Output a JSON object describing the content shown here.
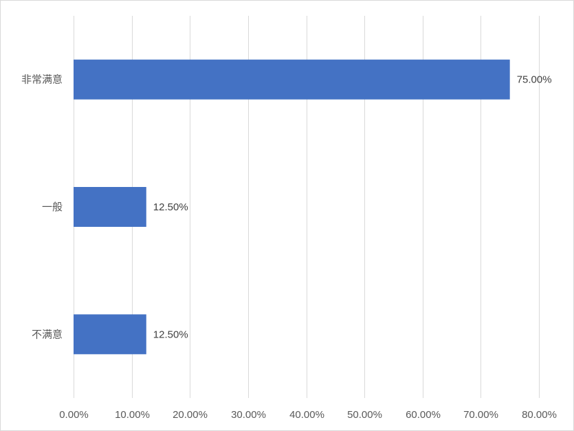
{
  "chart_data": {
    "type": "bar",
    "orientation": "horizontal",
    "title": "",
    "xlabel": "",
    "ylabel": "",
    "categories": [
      "非常满意",
      "一般",
      "不满意"
    ],
    "values": [
      75.0,
      12.5,
      12.5
    ],
    "data_labels": [
      "75.00%",
      "12.50%",
      "12.50%"
    ],
    "xlim": [
      0,
      80
    ],
    "x_ticks": [
      0,
      10,
      20,
      30,
      40,
      50,
      60,
      70,
      80
    ],
    "x_tick_labels": [
      "0.00%",
      "10.00%",
      "20.00%",
      "30.00%",
      "40.00%",
      "50.00%",
      "60.00%",
      "70.00%",
      "80.00%"
    ],
    "grid": "vertical",
    "legend": "none",
    "bar_color": "#4472c4",
    "grid_color": "#d9d9d9"
  }
}
